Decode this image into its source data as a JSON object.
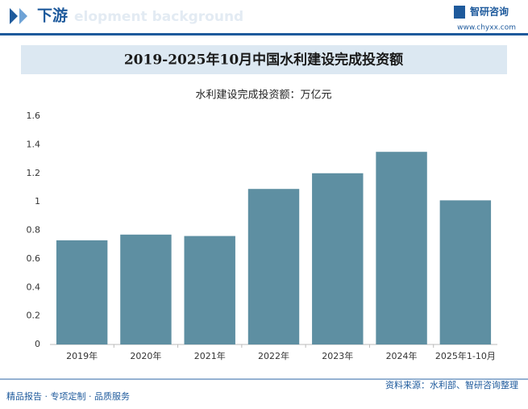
{
  "header": {
    "section": "下游",
    "watermark": "elopment background",
    "brand": "智研咨询",
    "url": "www.chyxx.com"
  },
  "chart_data": {
    "type": "bar",
    "title": "2019-2025年10月中国水利建设完成投资额",
    "subtitle": "水利建设完成投资额：万亿元",
    "categories": [
      "2019年",
      "2020年",
      "2021年",
      "2022年",
      "2023年",
      "2024年",
      "2025年1-10月"
    ],
    "values": [
      0.73,
      0.77,
      0.76,
      1.09,
      1.2,
      1.35,
      1.01
    ],
    "color": "#5e8fa2",
    "ylim": [
      0,
      1.6
    ],
    "yticks": [
      0,
      0.2,
      0.4,
      0.6,
      0.8,
      1,
      1.2,
      1.4,
      1.6
    ],
    "grid": false
  },
  "footer": {
    "slogan": "精品报告 · 专项定制 · 品质服务",
    "source": "资料来源：水利部、智研咨询整理"
  }
}
